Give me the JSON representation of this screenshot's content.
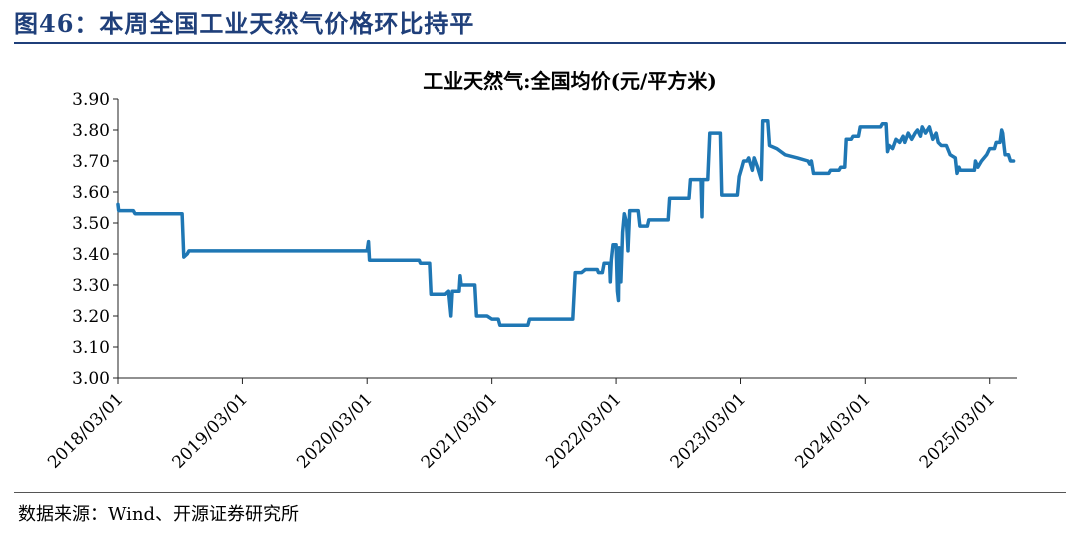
{
  "header": {
    "title": "图46：本周全国工业天然气价格环比持平"
  },
  "footer": {
    "source": "数据来源：Wind、开源证券研究所"
  },
  "colors": {
    "accent": "#1f3f7a",
    "line": "#1f77b4"
  },
  "chart_data": {
    "type": "line",
    "title": "工业天然气:全国均价(元/平方米)",
    "xlabel": "",
    "ylabel": "",
    "ylim": [
      3.0,
      3.9
    ],
    "yticks": [
      "3.00",
      "3.10",
      "3.20",
      "3.30",
      "3.40",
      "3.50",
      "3.60",
      "3.70",
      "3.80",
      "3.90"
    ],
    "xlim": [
      "2018-03-01",
      "2025-05-20"
    ],
    "xticks": [
      "2018/03/01",
      "2019/03/01",
      "2020/03/01",
      "2021/03/01",
      "2022/03/01",
      "2023/03/01",
      "2024/03/01",
      "2025/03/01"
    ],
    "grid": false,
    "series": [
      {
        "values": [
          [
            "2018-03-01",
            3.56
          ],
          [
            "2018-03-03",
            3.54
          ],
          [
            "2018-04-15",
            3.54
          ],
          [
            "2018-04-20",
            3.53
          ],
          [
            "2018-09-05",
            3.53
          ],
          [
            "2018-09-10",
            3.39
          ],
          [
            "2018-09-20",
            3.4
          ],
          [
            "2018-09-25",
            3.41
          ],
          [
            "2020-03-01",
            3.41
          ],
          [
            "2020-03-05",
            3.44
          ],
          [
            "2020-03-08",
            3.38
          ],
          [
            "2020-08-01",
            3.38
          ],
          [
            "2020-08-05",
            3.37
          ],
          [
            "2020-09-01",
            3.37
          ],
          [
            "2020-09-05",
            3.27
          ],
          [
            "2020-10-15",
            3.27
          ],
          [
            "2020-10-25",
            3.28
          ],
          [
            "2020-11-01",
            3.2
          ],
          [
            "2020-11-05",
            3.28
          ],
          [
            "2020-11-25",
            3.28
          ],
          [
            "2020-11-28",
            3.33
          ],
          [
            "2020-12-01",
            3.3
          ],
          [
            "2021-01-10",
            3.3
          ],
          [
            "2021-01-15",
            3.2
          ],
          [
            "2021-02-15",
            3.2
          ],
          [
            "2021-03-01",
            3.19
          ],
          [
            "2021-03-20",
            3.19
          ],
          [
            "2021-03-25",
            3.17
          ],
          [
            "2021-06-15",
            3.17
          ],
          [
            "2021-06-20",
            3.19
          ],
          [
            "2021-10-25",
            3.19
          ],
          [
            "2021-11-01",
            3.34
          ],
          [
            "2021-11-20",
            3.34
          ],
          [
            "2021-12-01",
            3.35
          ],
          [
            "2022-01-05",
            3.35
          ],
          [
            "2022-01-08",
            3.34
          ],
          [
            "2022-01-20",
            3.34
          ],
          [
            "2022-01-25",
            3.37
          ],
          [
            "2022-02-10",
            3.37
          ],
          [
            "2022-02-12",
            3.31
          ],
          [
            "2022-02-15",
            3.38
          ],
          [
            "2022-02-20",
            3.43
          ],
          [
            "2022-03-01",
            3.43
          ],
          [
            "2022-03-05",
            3.28
          ],
          [
            "2022-03-08",
            3.25
          ],
          [
            "2022-03-10",
            3.42
          ],
          [
            "2022-03-15",
            3.31
          ],
          [
            "2022-03-20",
            3.47
          ],
          [
            "2022-03-25",
            3.53
          ],
          [
            "2022-04-01",
            3.5
          ],
          [
            "2022-04-05",
            3.41
          ],
          [
            "2022-04-10",
            3.54
          ],
          [
            "2022-05-05",
            3.54
          ],
          [
            "2022-05-10",
            3.49
          ],
          [
            "2022-06-01",
            3.49
          ],
          [
            "2022-06-05",
            3.51
          ],
          [
            "2022-08-01",
            3.51
          ],
          [
            "2022-08-05",
            3.58
          ],
          [
            "2022-10-01",
            3.58
          ],
          [
            "2022-10-05",
            3.64
          ],
          [
            "2022-11-05",
            3.64
          ],
          [
            "2022-11-08",
            3.52
          ],
          [
            "2022-11-10",
            3.64
          ],
          [
            "2022-11-25",
            3.64
          ],
          [
            "2022-12-01",
            3.79
          ],
          [
            "2023-01-01",
            3.79
          ],
          [
            "2023-01-05",
            3.59
          ],
          [
            "2023-02-20",
            3.59
          ],
          [
            "2023-02-25",
            3.65
          ],
          [
            "2023-03-05",
            3.68
          ],
          [
            "2023-03-10",
            3.7
          ],
          [
            "2023-03-20",
            3.7
          ],
          [
            "2023-03-25",
            3.71
          ],
          [
            "2023-04-05",
            3.67
          ],
          [
            "2023-04-10",
            3.71
          ],
          [
            "2023-04-20",
            3.68
          ],
          [
            "2023-05-01",
            3.64
          ],
          [
            "2023-05-05",
            3.83
          ],
          [
            "2023-05-20",
            3.83
          ],
          [
            "2023-05-25",
            3.75
          ],
          [
            "2023-06-15",
            3.74
          ],
          [
            "2023-07-10",
            3.72
          ],
          [
            "2023-08-15",
            3.71
          ],
          [
            "2023-09-15",
            3.7
          ],
          [
            "2023-09-20",
            3.69
          ],
          [
            "2023-09-25",
            3.7
          ],
          [
            "2023-10-01",
            3.66
          ],
          [
            "2023-10-15",
            3.66
          ],
          [
            "2023-11-15",
            3.66
          ],
          [
            "2023-11-20",
            3.67
          ],
          [
            "2023-12-15",
            3.67
          ],
          [
            "2023-12-20",
            3.68
          ],
          [
            "2024-01-01",
            3.68
          ],
          [
            "2024-01-05",
            3.77
          ],
          [
            "2024-01-20",
            3.77
          ],
          [
            "2024-01-25",
            3.78
          ],
          [
            "2024-02-10",
            3.78
          ],
          [
            "2024-02-15",
            3.81
          ],
          [
            "2024-04-15",
            3.81
          ],
          [
            "2024-04-20",
            3.82
          ],
          [
            "2024-05-01",
            3.82
          ],
          [
            "2024-05-05",
            3.73
          ],
          [
            "2024-05-10",
            3.75
          ],
          [
            "2024-05-20",
            3.74
          ],
          [
            "2024-05-30",
            3.77
          ],
          [
            "2024-06-10",
            3.76
          ],
          [
            "2024-06-20",
            3.78
          ],
          [
            "2024-06-25",
            3.76
          ],
          [
            "2024-07-05",
            3.79
          ],
          [
            "2024-07-15",
            3.77
          ],
          [
            "2024-07-25",
            3.79
          ],
          [
            "2024-08-01",
            3.8
          ],
          [
            "2024-08-10",
            3.78
          ],
          [
            "2024-08-15",
            3.81
          ],
          [
            "2024-08-25",
            3.79
          ],
          [
            "2024-09-05",
            3.81
          ],
          [
            "2024-09-15",
            3.77
          ],
          [
            "2024-09-25",
            3.79
          ],
          [
            "2024-10-01",
            3.76
          ],
          [
            "2024-10-10",
            3.75
          ],
          [
            "2024-10-25",
            3.75
          ],
          [
            "2024-11-05",
            3.72
          ],
          [
            "2024-11-20",
            3.71
          ],
          [
            "2024-11-25",
            3.66
          ],
          [
            "2024-12-01",
            3.68
          ],
          [
            "2024-12-05",
            3.67
          ],
          [
            "2025-01-15",
            3.67
          ],
          [
            "2025-01-18",
            3.7
          ],
          [
            "2025-01-25",
            3.68
          ],
          [
            "2025-02-05",
            3.7
          ],
          [
            "2025-02-20",
            3.72
          ],
          [
            "2025-03-01",
            3.74
          ],
          [
            "2025-03-15",
            3.74
          ],
          [
            "2025-03-20",
            3.76
          ],
          [
            "2025-03-31",
            3.76
          ],
          [
            "2025-04-05",
            3.8
          ],
          [
            "2025-04-08",
            3.79
          ],
          [
            "2025-04-12",
            3.75
          ],
          [
            "2025-04-15",
            3.72
          ],
          [
            "2025-04-25",
            3.72
          ],
          [
            "2025-05-01",
            3.7
          ],
          [
            "2025-05-10",
            3.7
          ]
        ]
      }
    ]
  }
}
